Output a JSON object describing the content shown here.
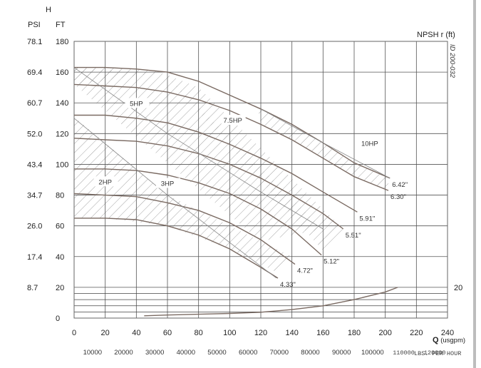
{
  "chart_data": {
    "type": "line",
    "title": "",
    "xlabel": "Q (usgpm)",
    "ylabel": "H",
    "y_units_left": [
      "PSI",
      "FT"
    ],
    "right_axis_label": "NPSH r (ft)",
    "right_axis_ticks": [
      {
        "value": 20,
        "label": "20"
      }
    ],
    "secondary_x_label": "LBS. PER HOUR",
    "drawing_id": "ID 200-032",
    "xlim": [
      0,
      240
    ],
    "ylim": [
      0,
      180
    ],
    "grid": true,
    "x_ticks": [
      0,
      20,
      40,
      60,
      80,
      100,
      120,
      140,
      160,
      180,
      200,
      220,
      240
    ],
    "y_ticks_ft": [
      0,
      20,
      40,
      60,
      80,
      100,
      120,
      140,
      160,
      180
    ],
    "y_ticks_psi": [
      "",
      "8.7",
      "17.4",
      "26.0",
      "34.7",
      "43.4",
      "52.0",
      "60.7",
      "69.4",
      "78.1"
    ],
    "secondary_x_ticks": [
      "10000",
      "20000",
      "30000",
      "40000",
      "50000",
      "60000",
      "70000",
      "80000",
      "90000",
      "100000",
      "110000",
      "120000"
    ],
    "series": [
      {
        "name": "6.42\"",
        "x": [
          0,
          20,
          40,
          60,
          80,
          100,
          120,
          140,
          160,
          180,
          203
        ],
        "y": [
          163,
          163,
          162,
          160,
          154,
          145,
          136,
          126,
          114,
          101,
          91
        ]
      },
      {
        "name": "6.30\"",
        "x": [
          0,
          20,
          40,
          60,
          80,
          100,
          120,
          140,
          160,
          180,
          202
        ],
        "y": [
          152,
          151,
          150,
          147,
          142,
          135,
          126,
          116,
          104,
          92,
          83
        ]
      },
      {
        "name": "5.91\"",
        "x": [
          0,
          20,
          40,
          60,
          80,
          100,
          120,
          140,
          160,
          182
        ],
        "y": [
          132,
          132,
          130,
          127,
          121,
          113,
          104,
          94,
          82,
          69
        ]
      },
      {
        "name": "5.51\"",
        "x": [
          0,
          20,
          40,
          60,
          80,
          100,
          120,
          140,
          160,
          173
        ],
        "y": [
          117,
          116,
          115,
          112,
          107,
          100,
          91,
          80,
          68,
          58
        ]
      },
      {
        "name": "5.12\"",
        "x": [
          0,
          20,
          40,
          60,
          80,
          100,
          120,
          140,
          159
        ],
        "y": [
          97,
          97,
          96,
          93,
          88,
          81,
          71,
          58,
          41
        ]
      },
      {
        "name": "4.72\"",
        "x": [
          0,
          20,
          40,
          60,
          80,
          100,
          120,
          142
        ],
        "y": [
          81,
          80,
          79,
          75,
          70,
          62,
          51,
          35
        ]
      },
      {
        "name": "4.33\"",
        "x": [
          0,
          20,
          40,
          60,
          80,
          100,
          120,
          131
        ],
        "y": [
          65,
          65,
          64,
          60,
          54,
          45,
          33,
          26
        ]
      },
      {
        "name": "NPSH r",
        "x": [
          45,
          60,
          80,
          100,
          120,
          140,
          160,
          180,
          200,
          208
        ],
        "y": [
          1.5,
          2,
          2.5,
          3,
          3.8,
          5.5,
          8,
          12,
          17,
          20
        ]
      }
    ],
    "annotations": [
      {
        "text": "2HP",
        "x": 20,
        "y": 88
      },
      {
        "text": "3HP",
        "x": 60,
        "y": 87
      },
      {
        "text": "5HP",
        "x": 40,
        "y": 139
      },
      {
        "text": "7.5HP",
        "x": 102,
        "y": 128
      },
      {
        "text": "10HP",
        "x": 190,
        "y": 113
      }
    ],
    "power_boundaries": [
      {
        "name": "2HP/3HP",
        "points": [
          [
            0,
            130
          ],
          [
            60,
            80
          ],
          [
            130,
            26
          ]
        ]
      },
      {
        "name": "3HP/5HP",
        "points": [
          [
            0,
            163
          ],
          [
            60,
            120
          ],
          [
            120,
            82
          ],
          [
            160,
            58
          ]
        ]
      },
      {
        "name": "7.5HP/10HP",
        "points": [
          [
            120,
            136
          ],
          [
            160,
            114
          ],
          [
            203,
            91
          ]
        ]
      }
    ]
  }
}
